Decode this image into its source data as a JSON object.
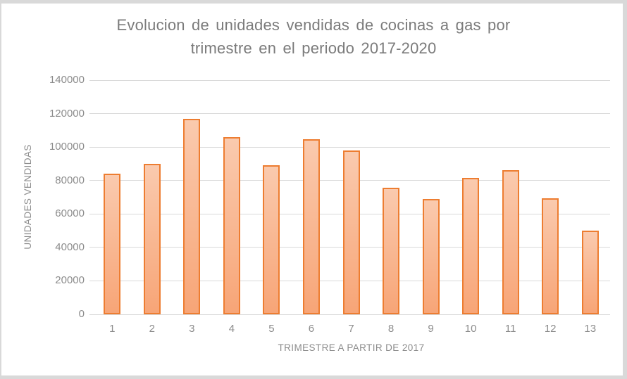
{
  "chart_data": {
    "type": "bar",
    "title": "Evolucion de unidades vendidas de cocinas a gas por\ntrimestre en el periodo 2017-2020",
    "xlabel": "TRIMESTRE A PARTIR DE 2017",
    "ylabel": "UNIDADES VENDIDAS",
    "categories": [
      "1",
      "2",
      "3",
      "4",
      "5",
      "6",
      "7",
      "8",
      "9",
      "10",
      "11",
      "12",
      "13"
    ],
    "values": [
      84000,
      90000,
      117000,
      106000,
      89000,
      104500,
      98000,
      75500,
      69000,
      81500,
      86000,
      69500,
      50000
    ],
    "ylim": [
      0,
      140000
    ],
    "yticks": [
      0,
      20000,
      40000,
      60000,
      80000,
      100000,
      120000,
      140000
    ],
    "grid": true,
    "legend_position": "none",
    "colors": {
      "background": "#FFFFFF",
      "frame_border": "#D9D9D9",
      "gridline": "#D9D9D9",
      "axis_text": "#8C8C8C",
      "title_text": "#7B7B7B",
      "bar_border": "#ED7D31",
      "bar_fill_top": "#FACAAE",
      "bar_fill_bottom": "#F7A577"
    }
  }
}
